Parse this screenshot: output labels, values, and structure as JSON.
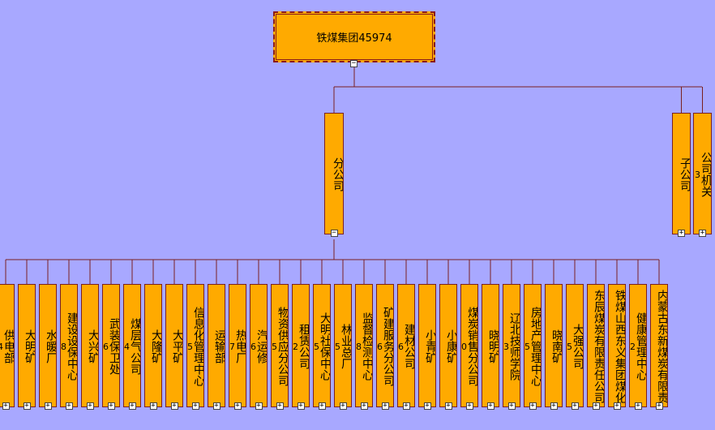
{
  "root": {
    "label": "铁煤集团45974",
    "toggle": "−"
  },
  "branches": [
    {
      "name": "分公司",
      "number": "",
      "toggle": "−"
    },
    {
      "name": "子公司",
      "number": "",
      "toggle": "+"
    },
    {
      "name": "公司机关",
      "number": "533",
      "toggle": "+"
    }
  ],
  "children": [
    {
      "name": "供电部",
      "number": "964"
    },
    {
      "name": "大明矿",
      "number": ""
    },
    {
      "name": "水暖厂",
      "number": ""
    },
    {
      "name": "建设设保中心",
      "number": "438"
    },
    {
      "name": "大兴矿",
      "number": ""
    },
    {
      "name": "武装保卫处",
      "number": "866"
    },
    {
      "name": "煤层气公司",
      "number": "494"
    },
    {
      "name": "大隆矿",
      "number": ""
    },
    {
      "name": "大平矿",
      "number": ""
    },
    {
      "name": "信息化管理中心",
      "number": "65"
    },
    {
      "name": "运输部",
      "number": ""
    },
    {
      "name": "热电厂",
      "number": "517"
    },
    {
      "name": "汽运修",
      "number": "536"
    },
    {
      "name": "物资供应分公司",
      "number": "245"
    },
    {
      "name": "租赁公司",
      "number": "92"
    },
    {
      "name": "大明社保中心",
      "number": "795"
    },
    {
      "name": "林业总厂",
      "number": "135"
    },
    {
      "name": "监督检测中心",
      "number": "108"
    },
    {
      "name": "矿建服务分公司",
      "number": "216"
    },
    {
      "name": "建材公司",
      "number": "356"
    },
    {
      "name": "小青矿",
      "number": ""
    },
    {
      "name": "小康矿",
      "number": ""
    },
    {
      "name": "煤炭销售分公司",
      "number": "250"
    },
    {
      "name": "晓明矿",
      "number": ""
    },
    {
      "name": "辽北技师学院",
      "number": "243"
    },
    {
      "name": "房地产管理中心",
      "number": "385"
    },
    {
      "name": "晓南矿",
      "number": ""
    },
    {
      "name": "大强公司",
      "number": "385"
    },
    {
      "name": "东辰煤炭有限责任公司",
      "number": ""
    },
    {
      "name": "铁煤山西东义集团煤化",
      "number": ""
    },
    {
      "name": "健康管理中心",
      "number": "52"
    },
    {
      "name": "内蒙古东新煤炭有限责",
      "number": ""
    }
  ],
  "child_toggle": "+",
  "colors": {
    "background": "#a8a8ff",
    "node": "#ffaa00",
    "line": "#7a2020"
  }
}
